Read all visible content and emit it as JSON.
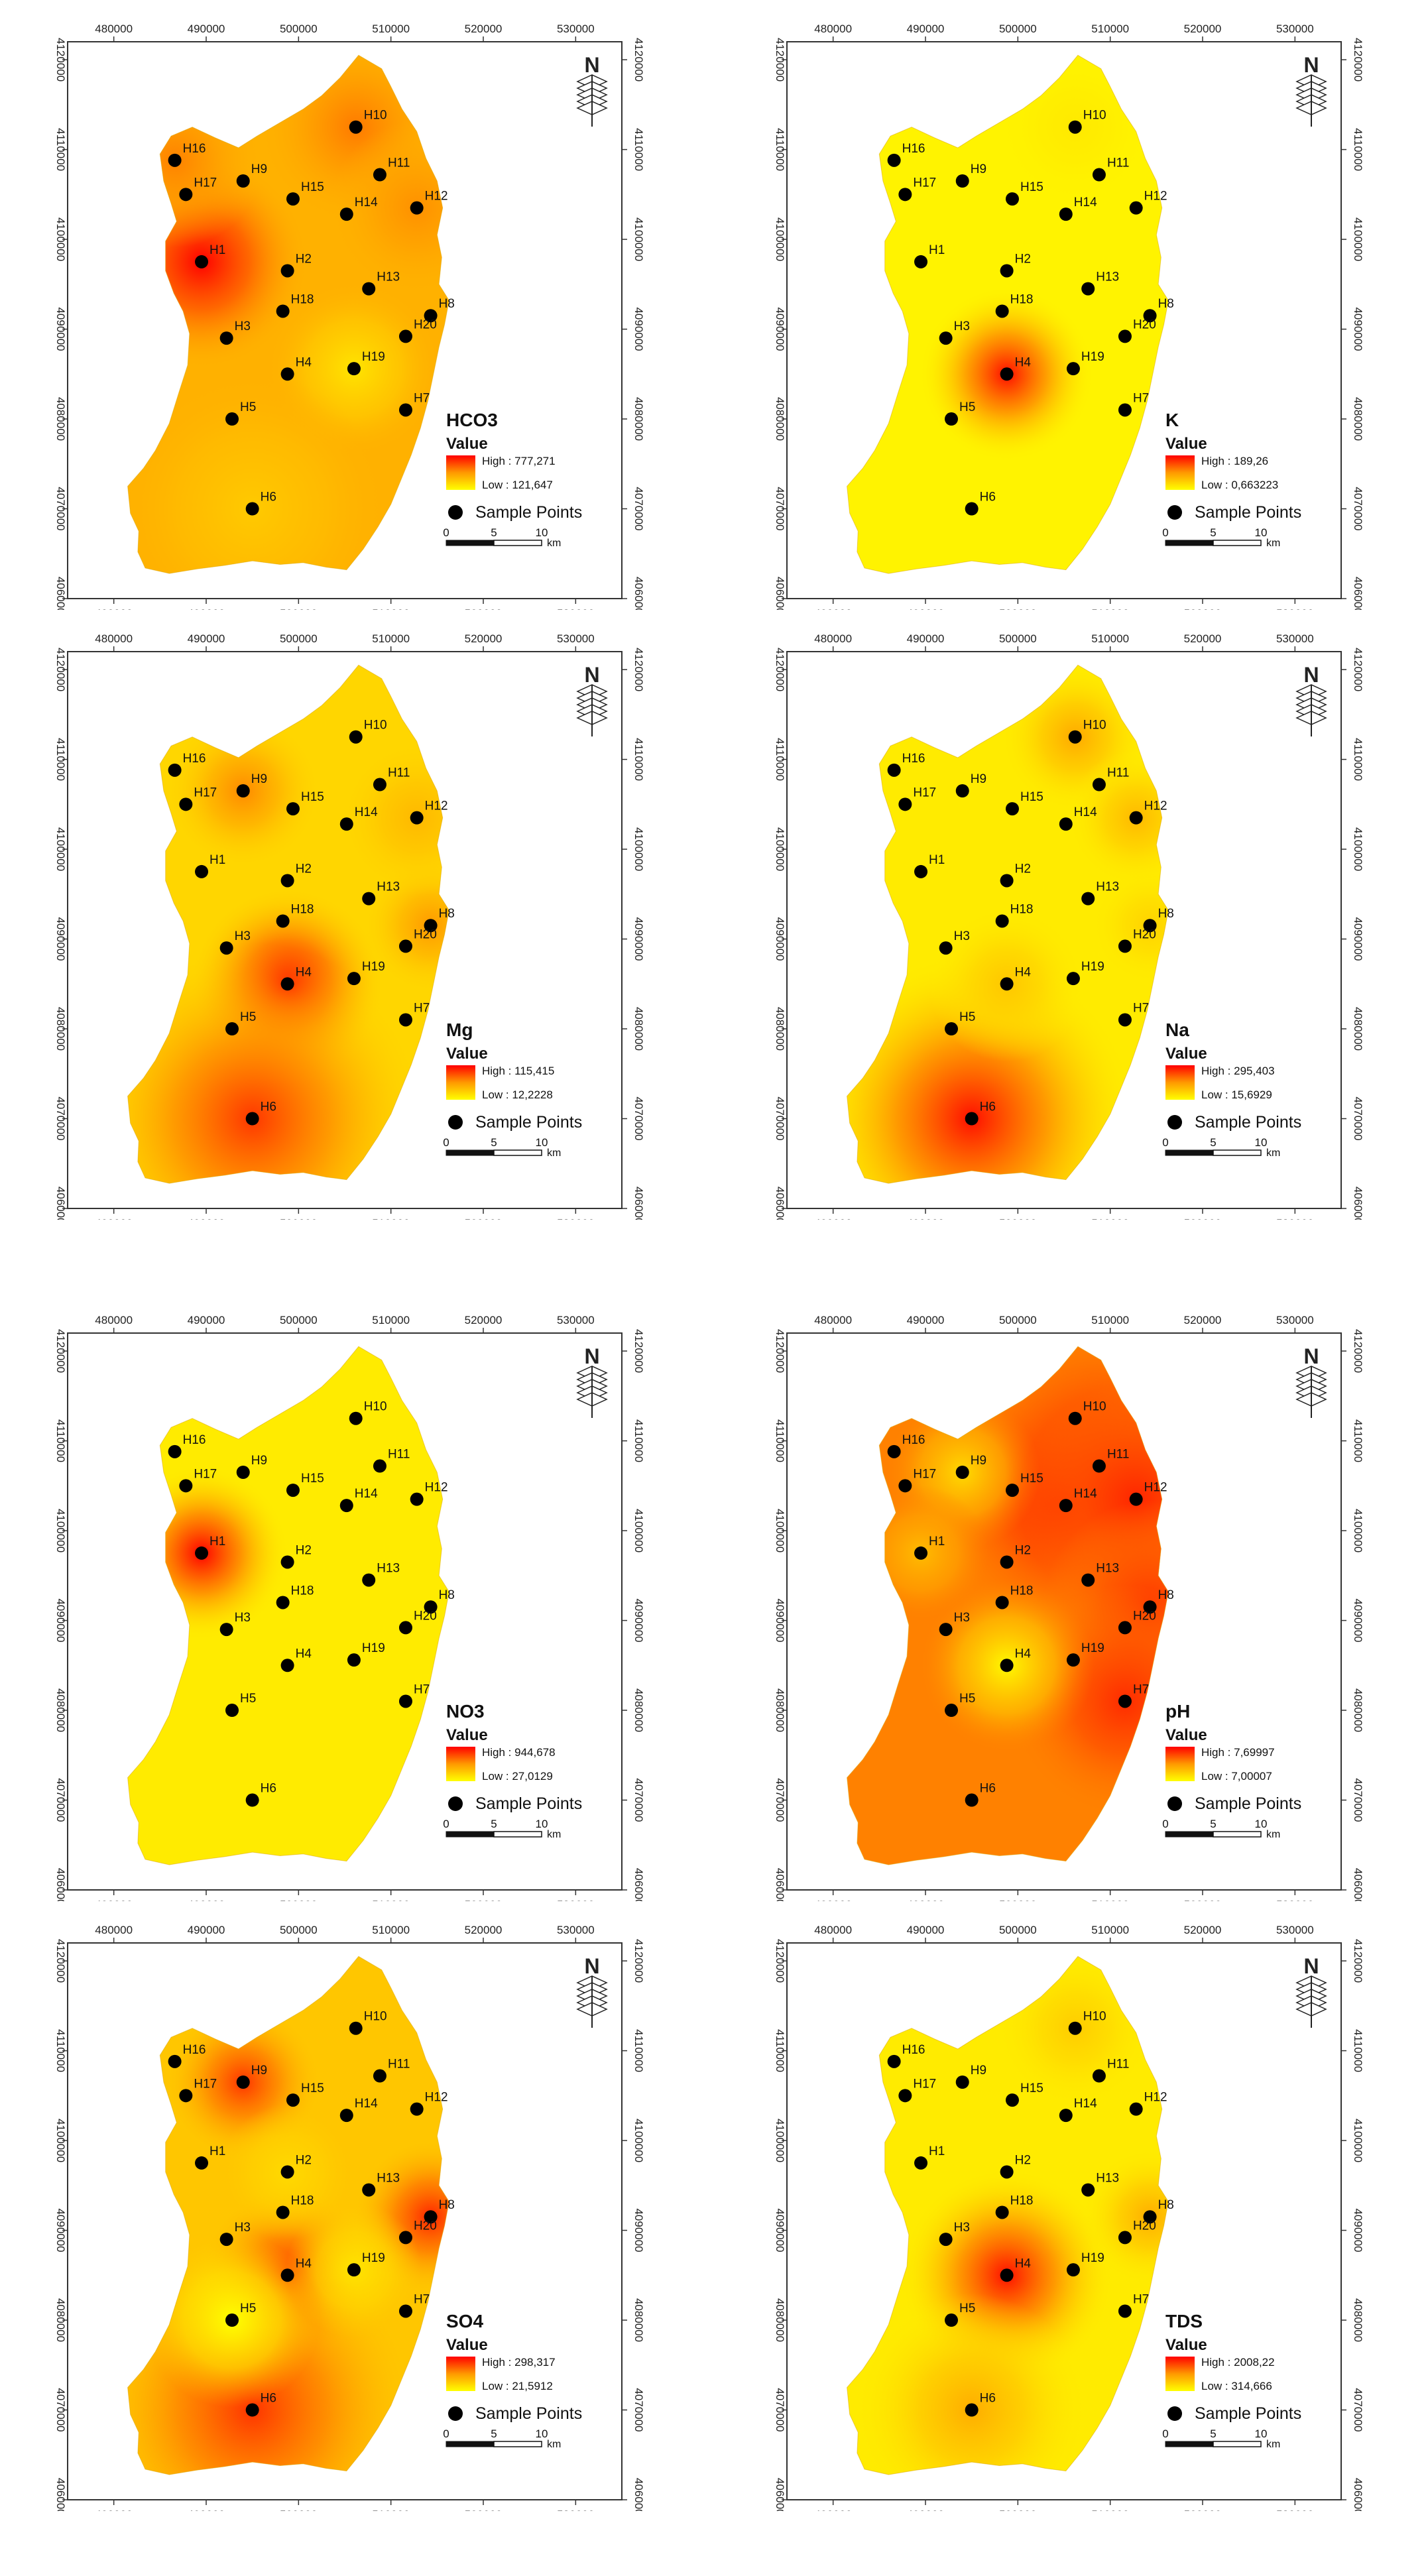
{
  "x_ticks": [
    "480000",
    "490000",
    "500000",
    "510000",
    "520000",
    "530000"
  ],
  "y_ticks": [
    "4120000",
    "4110000",
    "4100000",
    "4090000",
    "4080000",
    "4070000",
    "4060000"
  ],
  "common": {
    "value_label": "Value",
    "sample_label": "Sample Points",
    "scale_labels": [
      "0",
      "5",
      "10"
    ],
    "scale_unit": "km",
    "north_letter": "N"
  },
  "stations": [
    {
      "id": "H1",
      "x": 489500,
      "y": 4097500
    },
    {
      "id": "H2",
      "x": 498800,
      "y": 4096500
    },
    {
      "id": "H3",
      "x": 492200,
      "y": 4089000
    },
    {
      "id": "H4",
      "x": 498800,
      "y": 4085000
    },
    {
      "id": "H5",
      "x": 492800,
      "y": 4080000
    },
    {
      "id": "H6",
      "x": 495000,
      "y": 4070000
    },
    {
      "id": "H7",
      "x": 511600,
      "y": 4081000
    },
    {
      "id": "H8",
      "x": 514300,
      "y": 4091500
    },
    {
      "id": "H9",
      "x": 494000,
      "y": 4106500
    },
    {
      "id": "H10",
      "x": 506200,
      "y": 4112500
    },
    {
      "id": "H11",
      "x": 508800,
      "y": 4107200
    },
    {
      "id": "H12",
      "x": 512800,
      "y": 4103500
    },
    {
      "id": "H13",
      "x": 507600,
      "y": 4094500
    },
    {
      "id": "H14",
      "x": 505200,
      "y": 4102800
    },
    {
      "id": "H15",
      "x": 499400,
      "y": 4104500
    },
    {
      "id": "H16",
      "x": 486600,
      "y": 4108800
    },
    {
      "id": "H17",
      "x": 487800,
      "y": 4105000
    },
    {
      "id": "H18",
      "x": 498300,
      "y": 4092000
    },
    {
      "id": "H19",
      "x": 506000,
      "y": 4085600
    },
    {
      "id": "H20",
      "x": 511600,
      "y": 4089200
    }
  ],
  "maps": [
    {
      "name": "HCO3",
      "high": "High : 777,271",
      "low": "Low : 121,647",
      "base_t": 0.38,
      "blobs": [
        {
          "s": "H1",
          "w": 0.62,
          "r": 5500
        },
        {
          "s": "H10",
          "w": 0.22,
          "r": 5000
        },
        {
          "s": "H16",
          "w": 0.2,
          "r": 4500
        },
        {
          "s": "H12",
          "w": 0.15,
          "r": 4500
        },
        {
          "s": "H19",
          "w": -0.25,
          "r": 4500
        },
        {
          "s": "H6",
          "w": -0.12,
          "r": 7000
        }
      ]
    },
    {
      "name": "K",
      "high": "High : 189,26",
      "low": "Low : 0,663223",
      "base_t": 0.06,
      "blobs": [
        {
          "s": "H4",
          "w": 0.9,
          "r": 4500
        },
        {
          "s": "H10",
          "w": 0.05,
          "r": 4000
        }
      ]
    },
    {
      "name": "Mg",
      "high": "High : 115,415",
      "low": "Low : 12,2228",
      "base_t": 0.2,
      "blobs": [
        {
          "s": "H4",
          "w": 0.8,
          "r": 5000
        },
        {
          "s": "H6",
          "w": 0.62,
          "r": 9000
        },
        {
          "s": "H9",
          "w": 0.35,
          "r": 4000
        },
        {
          "s": "H8",
          "w": 0.3,
          "r": 3500
        },
        {
          "s": "H12",
          "w": 0.15,
          "r": 4000
        }
      ]
    },
    {
      "name": "Na",
      "high": "High : 295,403",
      "low": "Low : 15,6929",
      "base_t": 0.1,
      "blobs": [
        {
          "s": "H6",
          "w": 0.85,
          "r": 8500
        },
        {
          "s": "H10",
          "w": 0.32,
          "r": 3800
        },
        {
          "s": "H12",
          "w": 0.25,
          "r": 3500
        },
        {
          "s": "H4",
          "w": 0.18,
          "r": 4000
        },
        {
          "s": "H8",
          "w": 0.12,
          "r": 3000
        }
      ]
    },
    {
      "name": "NO3",
      "high": "High : 944,678",
      "low": "Low : 27,0129",
      "base_t": 0.1,
      "blobs": [
        {
          "s": "H1",
          "w": 0.9,
          "r": 4500
        }
      ]
    },
    {
      "name": "pH",
      "high": "High : 7,69997",
      "low": "Low : 7,00007",
      "base_t": 0.58,
      "blobs": [
        {
          "s": "H11",
          "w": 0.35,
          "r": 7500
        },
        {
          "s": "H14",
          "w": 0.3,
          "r": 7000
        },
        {
          "s": "H12",
          "w": 0.3,
          "r": 6000
        },
        {
          "s": "H8",
          "w": 0.25,
          "r": 5500
        },
        {
          "s": "H7",
          "w": 0.28,
          "r": 6000
        },
        {
          "s": "H4",
          "w": -0.55,
          "r": 4500
        },
        {
          "s": "H9",
          "w": -0.4,
          "r": 4000
        },
        {
          "s": "H1",
          "w": -0.25,
          "r": 3500
        }
      ]
    },
    {
      "name": "SO4",
      "high": "High : 298,317",
      "low": "Low : 21,5912",
      "base_t": 0.28,
      "blobs": [
        {
          "s": "H9",
          "w": 0.55,
          "r": 4000
        },
        {
          "s": "H8",
          "w": 0.6,
          "r": 4000
        },
        {
          "s": "H4",
          "w": 0.55,
          "r": 4500
        },
        {
          "s": "H6",
          "w": 0.55,
          "r": 8500
        },
        {
          "s": "H5",
          "w": -0.28,
          "r": 4500
        },
        {
          "s": "H19",
          "w": -0.15,
          "r": 3500
        },
        {
          "s": "H2",
          "w": -0.1,
          "r": 3500
        }
      ]
    },
    {
      "name": "TDS",
      "high": "High : 2008,22",
      "low": "Low : 314,666",
      "base_t": 0.1,
      "blobs": [
        {
          "s": "H4",
          "w": 0.85,
          "r": 5500
        },
        {
          "s": "H6",
          "w": 0.3,
          "r": 6000
        },
        {
          "s": "H8",
          "w": 0.3,
          "r": 3500
        },
        {
          "s": "H10",
          "w": 0.15,
          "r": 4000
        }
      ]
    }
  ],
  "palette": {
    "low": "#ffff00",
    "mid": "#ff9900",
    "high": "#ff0000",
    "station": "#000000",
    "frame": "#333333"
  }
}
